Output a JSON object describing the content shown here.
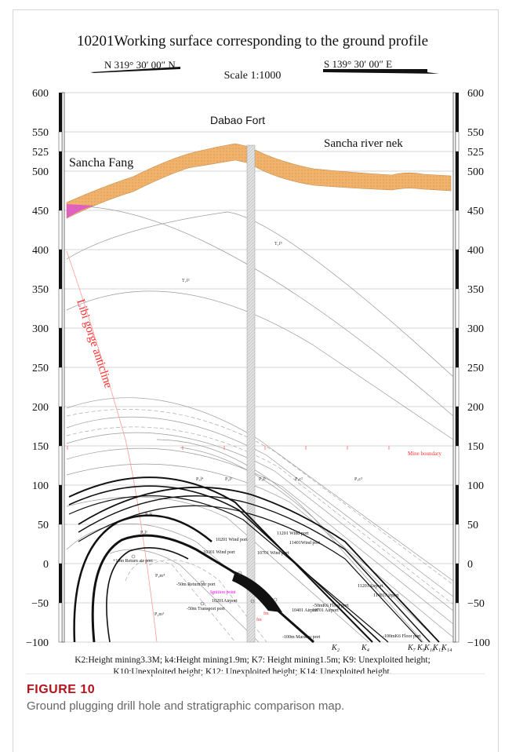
{
  "figure": {
    "title": "10201Working surface corresponding to the ground profile",
    "orientation_left": "N 319° 30′ 00″ N",
    "orientation_right": "S 139° 30′ 00″ E",
    "scale": "Scale 1:1000",
    "left_axis_ticks": [
      "600",
      "550",
      "525",
      "500",
      "450",
      "400",
      "350",
      "300",
      "250",
      "200",
      "150",
      "100",
      "50",
      "0",
      "−50",
      "−100"
    ],
    "right_axis_ticks": [
      "600",
      "550",
      "525",
      "500",
      "450",
      "400",
      "350",
      "300",
      "250",
      "200",
      "150",
      "100",
      "50",
      "0",
      "−50",
      "−100"
    ],
    "place_labels": {
      "dabao_fort": "Dabao Fort",
      "sancha_fang": "Sancha Fang",
      "sancha_river": "Sancha river nek",
      "anticline": "Libi gorge anticline",
      "mine_boundary": "Mine boundary"
    },
    "strata_labels": [
      "T₁f³",
      "T₁f²",
      "P₃l⁴",
      "P₃l³",
      "P₃l²",
      "P₂l¹",
      "P₃l¹",
      "P₃c²",
      "P₃c³",
      "P₂m⁴",
      "P₂m³"
    ],
    "port_labels": [
      "11201\nWind port",
      "11401Wind port",
      "10201\nWind port",
      "10301\nWind port",
      "10701\nWind port",
      "+10m\nReturn air port",
      "-50m\nReturn air port",
      "10201Airport",
      "-50m Transport port",
      "10401\nAirport",
      "10701\nAirport",
      "-50mK6 Floor port",
      "11201Airport",
      "11401Airport",
      "-100mK6\nFloor port",
      "-100m Maokou port"
    ],
    "special_labels": {
      "ignition": "Ignition point",
      "f1": "fm",
      "f2": "fm"
    },
    "seam_labels": [
      "K₂",
      "K₄",
      "K₇",
      "K₉",
      "K₁₀",
      "K₁₂",
      "K₁₄"
    ],
    "legend_line1": "K2:Height mining3.3M; k4:Height mining1.9m; K7: Height mining1.5m;   K9: Unexploited height;",
    "legend_line2": "K10:Unexploited height; K12: Unexploited height; K14: Unexploited height.",
    "colors": {
      "terrain": "#f0b36d",
      "terrain_left": "#e060c0",
      "anticline": "#ff3030",
      "mine_boundary": "#ff3030",
      "ignition": "#ff00ff",
      "grid": "#c8c8c8"
    }
  },
  "caption": {
    "label": "FIGURE 10",
    "text": "Ground plugging drill hole and stratigraphic comparison map."
  }
}
